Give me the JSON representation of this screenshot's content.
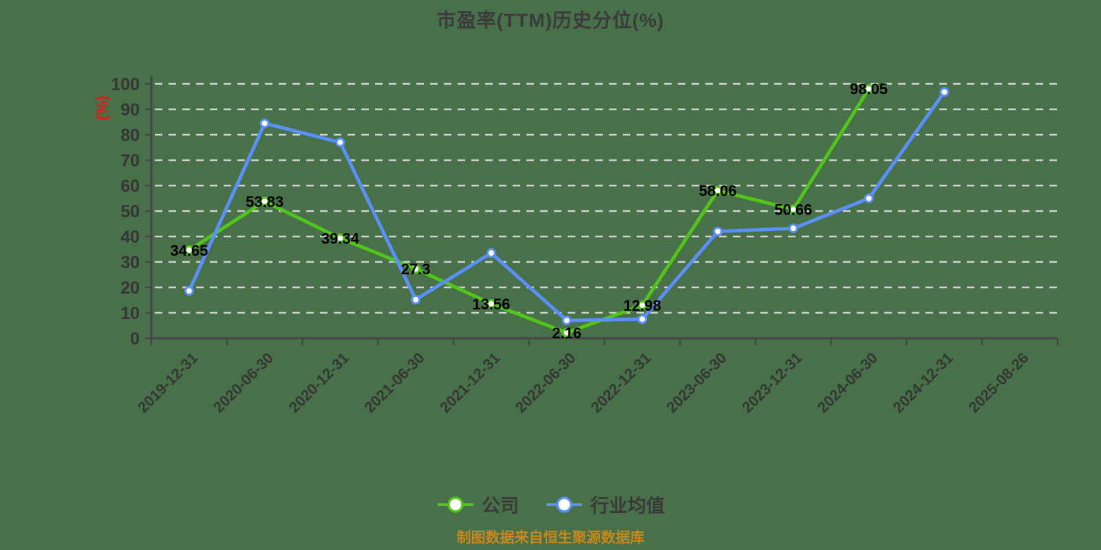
{
  "title": "市盈率(TTM)历史分位(%)",
  "source_note": "制图数据来自恒生聚源数据库",
  "legend": {
    "items": [
      {
        "label": "公司",
        "color": "#52c41a"
      },
      {
        "label": "行业均值",
        "color": "#5b8ff9"
      }
    ]
  },
  "colors": {
    "background": "#487049",
    "title_text": "#3b3b3d",
    "axis_line": "#464646",
    "tick_label": "#363636",
    "grid_line": "#d2d2d2",
    "data_label": "#000000",
    "y_axis_unit": "#e01b1b",
    "legend_text": "#3a3a3a",
    "source_note_text": "#c8881f",
    "company_series": "#52c41a",
    "industry_series": "#5b8ff9",
    "marker_fill": "#ffffff"
  },
  "chart_data": {
    "type": "line",
    "title": "市盈率(TTM)历史分位(%)",
    "ylabel": "(%)",
    "xlabel": "",
    "ylim": [
      0,
      100
    ],
    "y_ticks": [
      0,
      10,
      20,
      30,
      40,
      50,
      60,
      70,
      80,
      90,
      100
    ],
    "grid": "horizontal-dashed",
    "legend_position": "bottom",
    "categories": [
      "2019-12-31",
      "2020-06-30",
      "2020-12-31",
      "2021-06-30",
      "2021-12-31",
      "2022-06-30",
      "2022-12-31",
      "2023-06-30",
      "2023-12-31",
      "2024-06-30",
      "2024-12-31",
      "2025-08-26"
    ],
    "series": [
      {
        "id": "company",
        "name": "公司",
        "color": "#52c41a",
        "show_labels": true,
        "values": [
          34.65,
          53.83,
          39.34,
          27.3,
          13.56,
          2.16,
          12.98,
          58.06,
          50.66,
          98.05,
          null,
          null
        ]
      },
      {
        "id": "industry",
        "name": "行业均值",
        "color": "#5b8ff9",
        "show_labels": false,
        "estimated": true,
        "values": [
          18.6,
          84.5,
          77,
          15.2,
          33.5,
          7,
          7.5,
          42,
          43.2,
          55,
          96.8,
          null
        ]
      }
    ]
  }
}
